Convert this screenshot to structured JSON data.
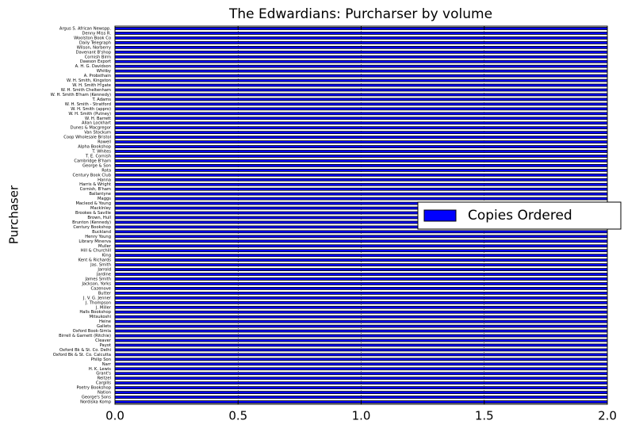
{
  "chart_data": {
    "type": "barh",
    "title": "The Edwardians: Purcharser by volume",
    "ylabel": "Purchaser",
    "categories": [
      "Nordiska Komp",
      "George's Sons",
      "Nation",
      "Poetry Bookshop",
      "Cargills",
      "Reitzel",
      "Grant's",
      "H. K. Lewis",
      "Narr",
      "Philip Son",
      "Oxford Bk & St. Co. Calcutta",
      "Oxford Bk & St. Co. Delhi",
      "Payot",
      "Cleaver",
      "Birrell & Garnett (Ritchie)",
      "Oxford Book-Simla",
      "Gallets",
      "Heine",
      "Mitsukoshi",
      "Halls Bookshop",
      "J. Miller",
      "J. Thompson",
      "J. V. G. Jenner",
      "Butter",
      "Cazenove",
      "Jackson, Yorks",
      "James Smith",
      "Jardine",
      "Jarrold",
      "Jas. Smith",
      "Kent & Richards",
      "King",
      "Hill & Churchill",
      "Muller",
      "Library Minerva",
      "Henry Young",
      "Buckland",
      "Century Bookshop",
      "Brunton (Kennedy)",
      "Brown, Hull",
      "Brookes & Saville",
      "Macklnley",
      "Macleod & Young",
      "Maggs",
      "Ballantyne",
      "Cornish, B'ham",
      "Harris & Wright",
      "Hanna",
      "Century Book Club",
      "Rota",
      "George & Son",
      "Cambridge B'ham",
      "T. E. Cornish",
      "T. Whites",
      "Alpha Bookshop",
      "Rowell",
      "Coop Wholesale Bristol",
      "Van Stockum",
      "Dunes & Macgregor",
      "Allan Lockhart",
      "W. H. Barrett",
      "W. H. Smith (Putney)",
      "W. H. Smith (appro)",
      "W. H. Smith - Stratford",
      "T. Adams",
      "W. H. Smith B'ham (Kennedy)",
      "W. H. Smith Cheltenham",
      "W. H. Smith H'gate",
      "W. H. Smith, Kingston",
      "A. Probsthain",
      "Whitby",
      "A. H. G. Davidson",
      "Dawson Export",
      "Cornish Birm",
      "Davenant B'shop",
      "Wilson, Norberry",
      "Daily Telegraph",
      "Woolston Book Co",
      "Denny Miss R.",
      "Argus S. African Newspp."
    ],
    "series": [
      {
        "name": "Copies Ordered",
        "color": "#0000ff",
        "values": [
          2,
          2,
          2,
          2,
          2,
          2,
          2,
          2,
          2,
          2,
          2,
          2,
          2,
          2,
          2,
          2,
          2,
          2,
          2,
          2,
          2,
          2,
          2,
          2,
          2,
          2,
          2,
          2,
          2,
          2,
          2,
          2,
          2,
          2,
          2,
          2,
          2,
          2,
          2,
          2,
          2,
          2,
          2,
          2,
          2,
          2,
          2,
          2,
          2,
          2,
          2,
          2,
          2,
          2,
          2,
          2,
          2,
          2,
          2,
          2,
          2,
          2,
          2,
          2,
          2,
          2,
          2,
          2,
          2,
          2,
          2,
          2,
          2,
          2,
          2,
          2,
          2,
          2,
          2,
          2
        ]
      }
    ],
    "xlim": [
      0,
      2
    ],
    "xticks": [
      {
        "value": 0,
        "label": "0.0"
      },
      {
        "value": 0.5,
        "label": "0.5"
      },
      {
        "value": 1,
        "label": "1.0"
      },
      {
        "value": 1.5,
        "label": "1.5"
      },
      {
        "value": 2,
        "label": "2.0"
      }
    ],
    "grid": true,
    "legend": "right"
  }
}
